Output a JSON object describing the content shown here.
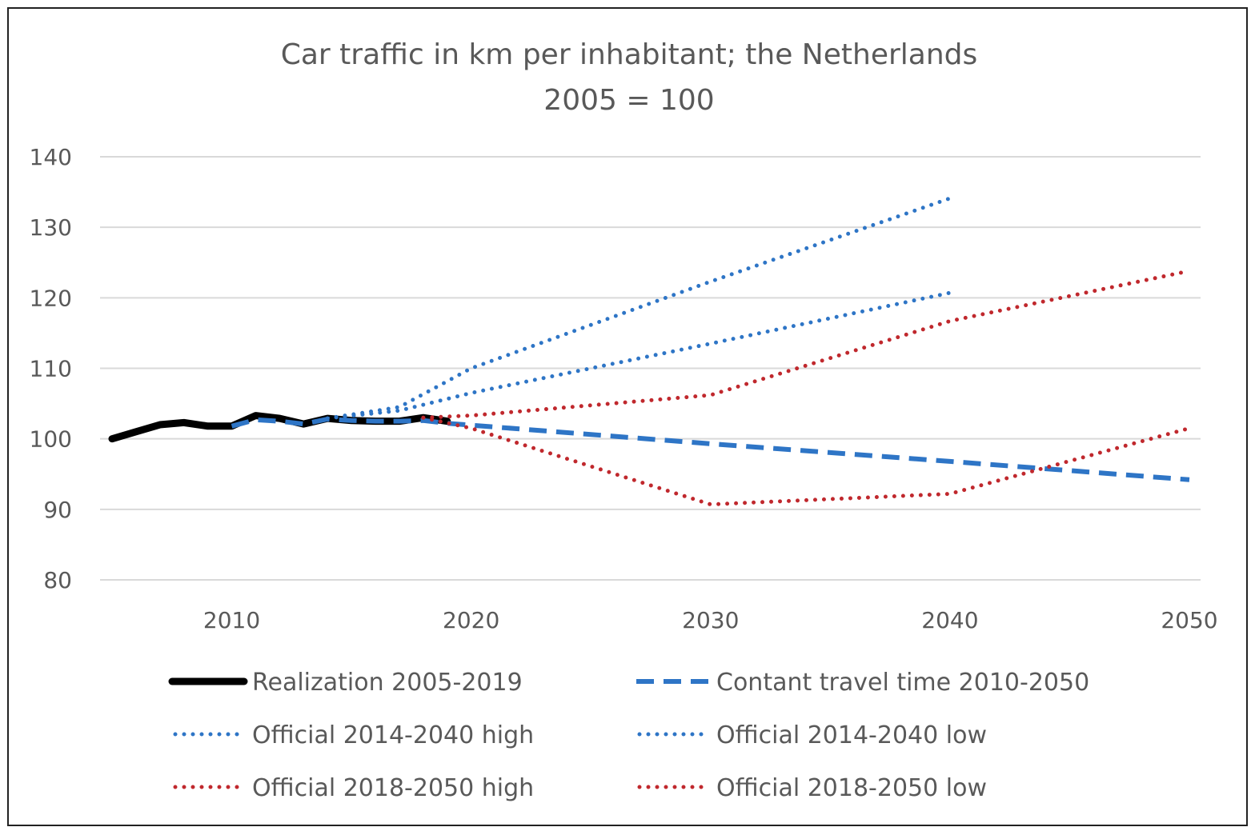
{
  "chart_data": {
    "type": "line",
    "title": "Car traffic in km per inhabitant; the Netherlands",
    "subtitle": "2005 = 100",
    "xlabel": "",
    "ylabel": "",
    "xlim": [
      2005,
      2050
    ],
    "ylim": [
      80,
      140
    ],
    "x_ticks": [
      "2010",
      "2020",
      "2030",
      "2040",
      "2050"
    ],
    "y_ticks": [
      "80",
      "90",
      "100",
      "110",
      "120",
      "130",
      "140"
    ],
    "grid": "horizontal",
    "legend_placement": "bottom",
    "series": [
      {
        "name": "Realization 2005-2019",
        "color": "#000000",
        "style": "solid",
        "x": [
          2005,
          2006,
          2007,
          2008,
          2009,
          2010,
          2011,
          2012,
          2013,
          2014,
          2015,
          2016,
          2017,
          2018,
          2019
        ],
        "y": [
          100,
          101,
          102,
          102.3,
          101.8,
          101.8,
          103.3,
          102.9,
          102.1,
          102.9,
          102.6,
          102.5,
          102.5,
          103.0,
          102.5
        ]
      },
      {
        "name": "Contant travel time 2010-2050",
        "color": "#2E75C6",
        "style": "dashed",
        "x": [
          2010,
          2011,
          2012,
          2013,
          2014,
          2015,
          2016,
          2017,
          2018,
          2019,
          2030,
          2040,
          2050
        ],
        "y": [
          101.8,
          102.7,
          102.5,
          102.1,
          102.8,
          102.6,
          102.5,
          102.5,
          102.6,
          102.2,
          99.3,
          96.8,
          94.2
        ]
      },
      {
        "name": "Official 2014-2040 high",
        "color": "#2E75C6",
        "style": "dotted",
        "x": [
          2014,
          2017,
          2020,
          2030,
          2040
        ],
        "y": [
          102.9,
          104.5,
          110,
          122.3,
          134.1
        ]
      },
      {
        "name": "Official 2014-2040 low",
        "color": "#2E75C6",
        "style": "dotted",
        "x": [
          2014,
          2017,
          2020,
          2030,
          2040
        ],
        "y": [
          102.9,
          104,
          106.5,
          113.5,
          120.7
        ]
      },
      {
        "name": "Official 2018-2050 high",
        "color": "#C0282D",
        "style": "dotted",
        "x": [
          2018,
          2020,
          2030,
          2040,
          2050
        ],
        "y": [
          103,
          103.3,
          106.2,
          116.7,
          123.8
        ]
      },
      {
        "name": "Official 2018-2050 low",
        "color": "#C0282D",
        "style": "dotted",
        "x": [
          2018,
          2020,
          2030,
          2040,
          2050
        ],
        "y": [
          103,
          101.5,
          90.7,
          92.2,
          101.5
        ]
      }
    ]
  }
}
